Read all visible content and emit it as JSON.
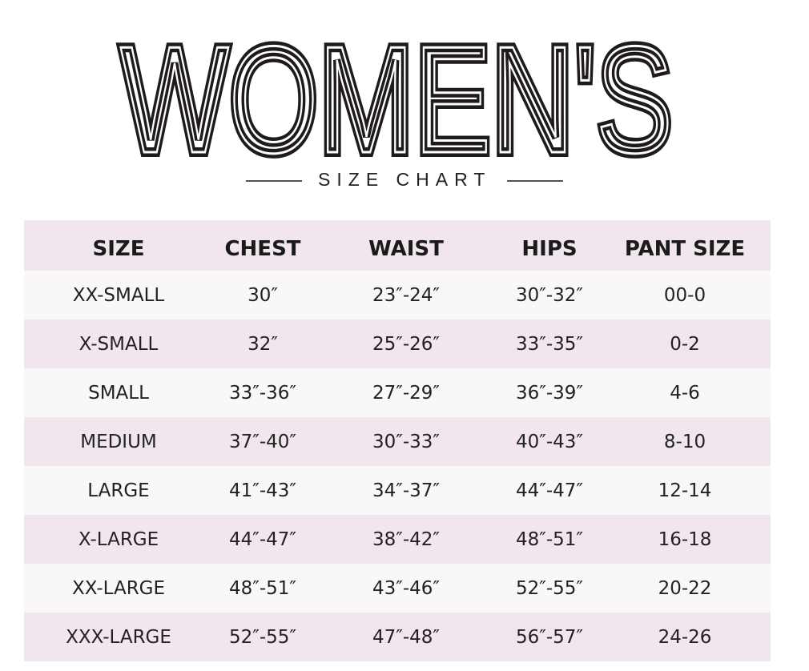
{
  "title": "WOMEN'S",
  "subtitle": "SIZE CHART",
  "colors": {
    "header_bg": "#f1e6ed",
    "row_light": "#faf7f9",
    "row_pink": "#f1e6ed",
    "text": "#222222"
  },
  "table": {
    "headers": [
      "SIZE",
      "CHEST",
      "WAIST",
      "HIPS",
      "PANT SIZE"
    ],
    "rows": [
      [
        "XX-SMALL",
        "30″",
        "23″-24″",
        "30″-32″",
        "00-0"
      ],
      [
        "X-SMALL",
        "32″",
        "25″-26″",
        "33″-35″",
        "0-2"
      ],
      [
        "SMALL",
        "33″-36″",
        "27″-29″",
        "36″-39″",
        "4-6"
      ],
      [
        "MEDIUM",
        "37″-40″",
        "30″-33″",
        "40″-43″",
        "8-10"
      ],
      [
        "LARGE",
        "41″-43″",
        "34″-37″",
        "44″-47″",
        "12-14"
      ],
      [
        "X-LARGE",
        "44″-47″",
        "38″-42″",
        "48″-51″",
        "16-18"
      ],
      [
        "XX-LARGE",
        "48″-51″",
        "43″-46″",
        "52″-55″",
        "20-22"
      ],
      [
        "XXX-LARGE",
        "52″-55″",
        "47″-48″",
        "56″-57″",
        "24-26"
      ]
    ]
  }
}
